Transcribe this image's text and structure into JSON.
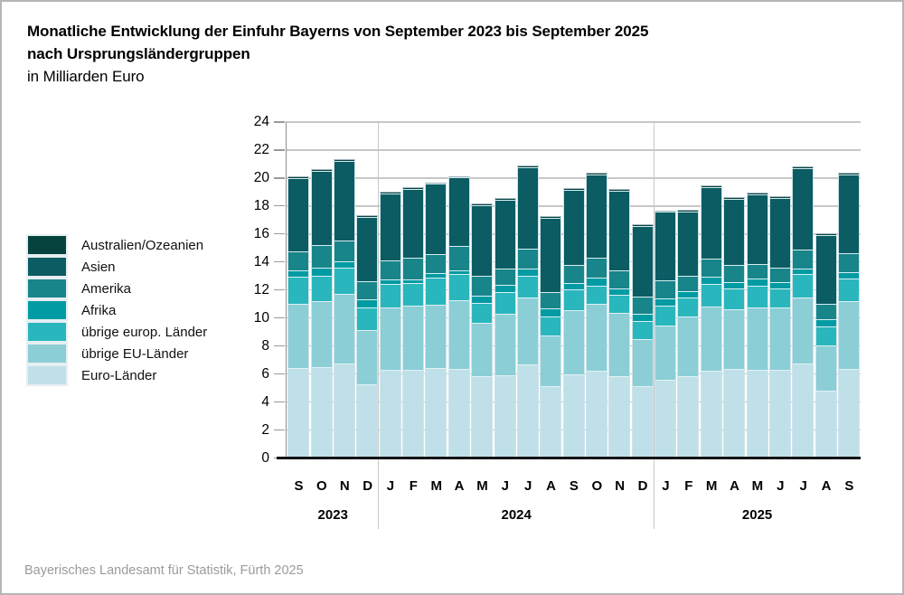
{
  "title": {
    "line1": "Monatliche Entwicklung der Einfuhr Bayerns von September 2023 bis September 2025",
    "line2": "nach Ursprungsländergruppen",
    "subtitle": "in Milliarden Euro"
  },
  "footer": {
    "text": "Bayerisches Landesamt für Statistik, Fürth 2025"
  },
  "colors": {
    "grid": "#c7c7c7",
    "axis": "#141414",
    "segment_border": "#e4f2f6",
    "bar_cap": "#9db5bd"
  },
  "legend": {
    "position": "left",
    "items": [
      {
        "label": "Australien/Ozeanien",
        "color": "#06433e"
      },
      {
        "label": "Asien",
        "color": "#0b5c63"
      },
      {
        "label": "Amerika",
        "color": "#18858a"
      },
      {
        "label": "Afrika",
        "color": "#009ba3"
      },
      {
        "label": "übrige europ. Länder",
        "color": "#2ab6bd"
      },
      {
        "label": "übrige EU-Länder",
        "color": "#8bced6"
      },
      {
        "label": "Euro-Länder",
        "color": "#bfe0e9"
      }
    ]
  },
  "chart_data": {
    "type": "bar",
    "stacked": true,
    "title": "Monatliche Entwicklung der Einfuhr Bayerns von September 2023 bis September 2025 nach Ursprungsländergruppen",
    "unit": "Milliarden Euro",
    "ylim": [
      0,
      24
    ],
    "ytick_step": 2,
    "grid": true,
    "legend_position": "left",
    "categories": [
      "S",
      "O",
      "N",
      "D",
      "J",
      "F",
      "M",
      "A",
      "M",
      "J",
      "J",
      "A",
      "S",
      "O",
      "N",
      "D",
      "J",
      "F",
      "M",
      "A",
      "M",
      "J",
      "J",
      "A",
      "S"
    ],
    "year_groups": [
      {
        "label": "2023",
        "start": 0,
        "count": 4
      },
      {
        "label": "2024",
        "start": 4,
        "count": 12
      },
      {
        "label": "2025",
        "start": 16,
        "count": 9
      }
    ],
    "series": [
      {
        "name": "Euro-Länder",
        "color": "#bfe0e9",
        "values": [
          6.5,
          6.55,
          6.8,
          5.3,
          6.35,
          6.35,
          6.5,
          6.45,
          5.9,
          5.95,
          6.75,
          5.2,
          6.05,
          6.3,
          5.9,
          5.2,
          5.65,
          5.9,
          6.3,
          6.4,
          6.35,
          6.35,
          6.8,
          4.9,
          6.45
        ]
      },
      {
        "name": "übrige EU-Länder",
        "color": "#8bced6",
        "values": [
          4.6,
          4.75,
          5.0,
          3.9,
          4.5,
          4.6,
          4.5,
          4.9,
          3.85,
          4.4,
          4.75,
          3.6,
          4.55,
          4.75,
          4.55,
          3.35,
          3.85,
          4.3,
          4.6,
          4.3,
          4.5,
          4.5,
          4.7,
          3.2,
          4.85
        ]
      },
      {
        "name": "übrige europ. Länder",
        "color": "#2ab6bd",
        "values": [
          1.9,
          1.8,
          1.85,
          1.65,
          1.65,
          1.6,
          1.95,
          1.85,
          1.4,
          1.55,
          1.6,
          1.4,
          1.5,
          1.35,
          1.3,
          1.3,
          1.45,
          1.35,
          1.6,
          1.45,
          1.5,
          1.3,
          1.7,
          1.35,
          1.6
        ]
      },
      {
        "name": "Afrika",
        "color": "#009ba3",
        "values": [
          0.45,
          0.55,
          0.45,
          0.55,
          0.35,
          0.3,
          0.3,
          0.3,
          0.5,
          0.55,
          0.5,
          0.55,
          0.45,
          0.55,
          0.45,
          0.5,
          0.5,
          0.45,
          0.5,
          0.5,
          0.55,
          0.45,
          0.4,
          0.5,
          0.45
        ]
      },
      {
        "name": "Amerika",
        "color": "#18858a",
        "values": [
          1.4,
          1.6,
          1.5,
          1.3,
          1.3,
          1.55,
          1.4,
          1.7,
          1.4,
          1.15,
          1.4,
          1.15,
          1.3,
          1.4,
          1.3,
          1.25,
          1.3,
          1.05,
          1.3,
          1.2,
          1.05,
          1.05,
          1.35,
          1.1,
          1.35
        ]
      },
      {
        "name": "Asien",
        "color": "#0b5c63",
        "values": [
          5.2,
          5.35,
          5.7,
          4.6,
          4.8,
          4.9,
          5.0,
          4.9,
          5.1,
          4.9,
          5.85,
          5.3,
          5.4,
          5.95,
          5.65,
          5.05,
          4.9,
          4.65,
          5.1,
          4.75,
          4.95,
          5.0,
          5.85,
          4.95,
          5.6
        ]
      },
      {
        "name": "Australien/Ozeanien",
        "color": "#06433e",
        "values": [
          0.05,
          0.05,
          0.05,
          0.05,
          0.05,
          0.05,
          0.05,
          0.05,
          0.05,
          0.05,
          0.05,
          0.05,
          0.05,
          0.05,
          0.05,
          0.05,
          0.05,
          0.05,
          0.05,
          0.05,
          0.05,
          0.05,
          0.05,
          0.05,
          0.05
        ]
      }
    ]
  }
}
